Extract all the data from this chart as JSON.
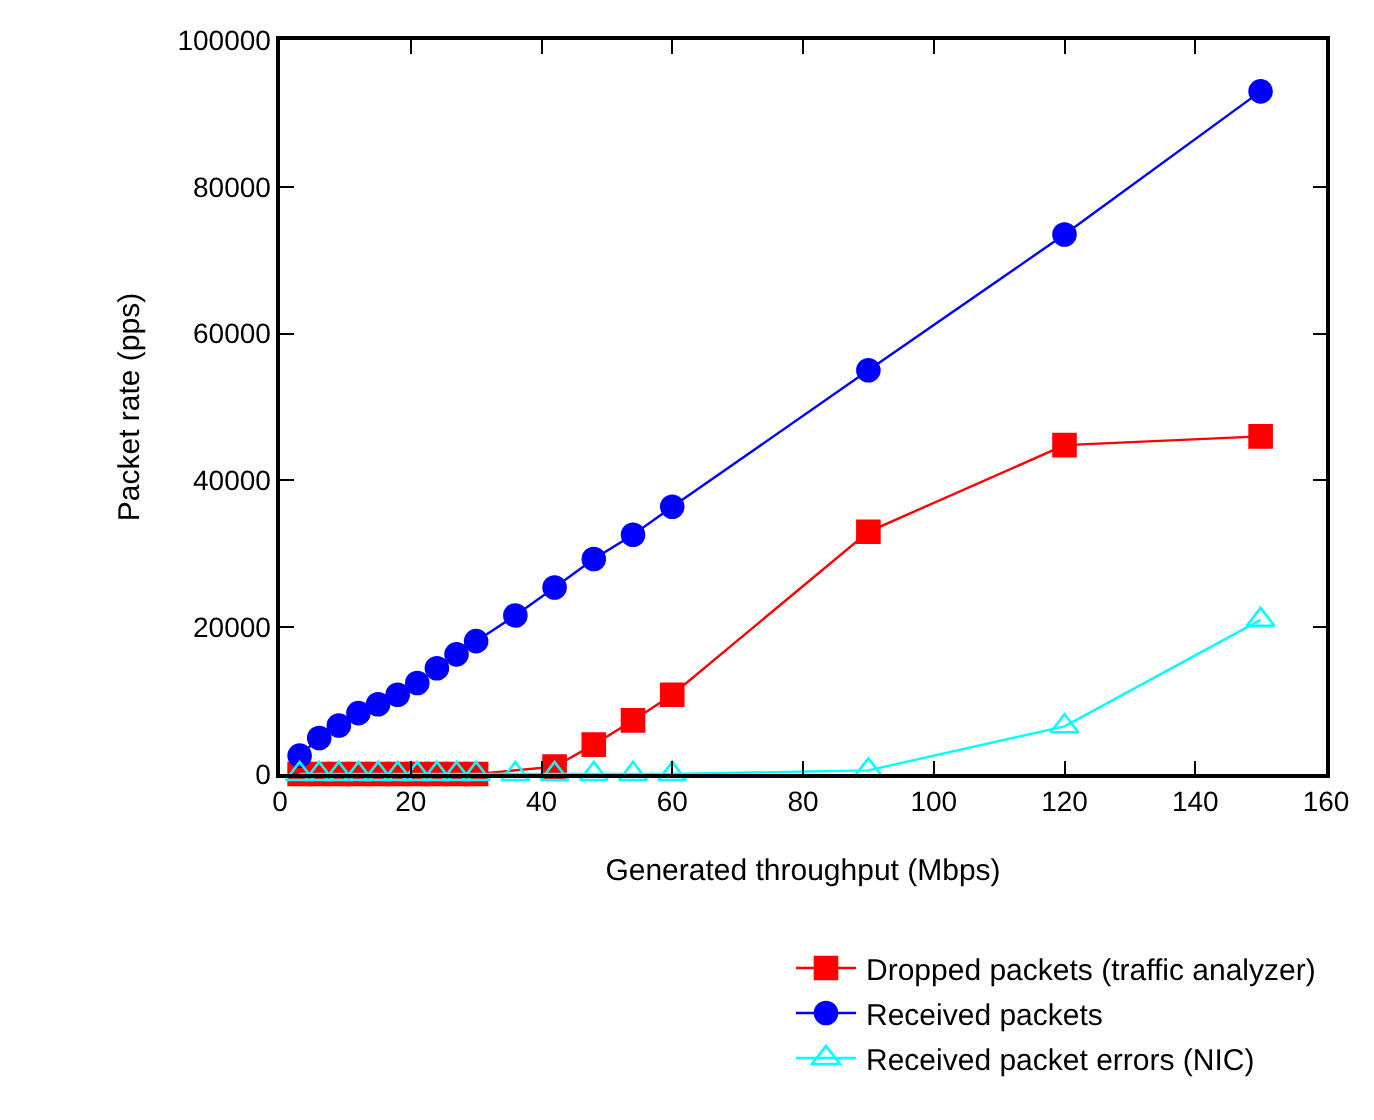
{
  "chart_data": {
    "type": "line",
    "xlabel": "Generated throughput (Mbps)",
    "ylabel": "Packet rate (pps)",
    "xlim": [
      0,
      160
    ],
    "xticks": [
      0,
      20,
      40,
      60,
      80,
      100,
      120,
      140,
      160
    ],
    "ylim": [
      0,
      100000
    ],
    "yticks": [
      0,
      20000,
      40000,
      60000,
      80000,
      100000
    ],
    "legend": "bottom right",
    "series": [
      {
        "name": "Dropped packets (traffic analyzer)",
        "color": "#ff0000",
        "marker": "square",
        "x": [
          3,
          6,
          9,
          12,
          15,
          18,
          21,
          24,
          27,
          30,
          42,
          48,
          54,
          60,
          90,
          120,
          150
        ],
        "values": [
          0,
          0,
          0,
          0,
          0,
          0,
          0,
          0,
          0,
          0,
          1000,
          4000,
          7300,
          10800,
          33000,
          44800,
          46000
        ]
      },
      {
        "name": "Received packets",
        "color": "#0000ff",
        "marker": "circle",
        "x": [
          3,
          6,
          9,
          12,
          15,
          18,
          21,
          24,
          27,
          30,
          36,
          42,
          48,
          54,
          60,
          90,
          120,
          150
        ],
        "values": [
          2500,
          4900,
          6600,
          8300,
          9500,
          10800,
          12400,
          14400,
          16300,
          18100,
          21600,
          25400,
          29300,
          32600,
          36400,
          55000,
          73500,
          93000
        ]
      },
      {
        "name": "Received packet errors (NIC)",
        "color": "#00ffff",
        "marker": "triangle",
        "x": [
          3,
          6,
          9,
          12,
          15,
          18,
          21,
          24,
          27,
          30,
          36,
          42,
          48,
          54,
          60,
          90,
          120,
          150
        ],
        "values": [
          0,
          0,
          0,
          0,
          0,
          0,
          0,
          0,
          0,
          0,
          0,
          0,
          0,
          0,
          0,
          500,
          6500,
          21000
        ]
      }
    ]
  }
}
